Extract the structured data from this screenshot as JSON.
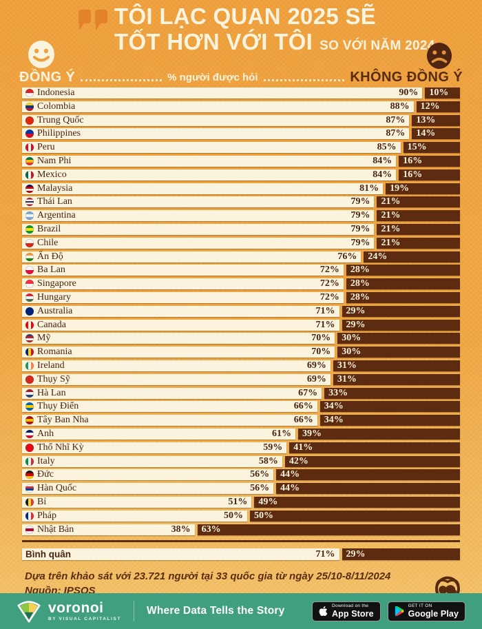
{
  "header": {
    "title_line1": "TÔI LẠC QUAN 2025 SẼ",
    "title_line2": "TỐT HƠN VỚI TÔI",
    "title_suffix": "SO VỚI NĂM 2024",
    "agree_label": "ĐỒNG Ý",
    "disagree_label": "KHÔNG ĐỒNG Ý",
    "axis_label": "% người được hỏi"
  },
  "chart_data": {
    "type": "bar",
    "orientation": "horizontal",
    "stacked": true,
    "unit": "%",
    "series": [
      {
        "name": "Đồng ý"
      },
      {
        "name": "Không đồng ý"
      }
    ],
    "countries": [
      {
        "name": "Indonesia",
        "agree": 90,
        "disagree": 10,
        "flag": {
          "stripes": [
            "#dc2127",
            "#f5f5f5"
          ]
        }
      },
      {
        "name": "Colombia",
        "agree": 88,
        "disagree": 12,
        "flag": {
          "stripes": [
            "#fcd116",
            "#003893",
            "#ce1126"
          ]
        }
      },
      {
        "name": "Trung Quốc",
        "agree": 87,
        "disagree": 13,
        "flag": {
          "stripes": [
            "#de2910"
          ]
        }
      },
      {
        "name": "Philippines",
        "agree": 87,
        "disagree": 14,
        "flag": {
          "stripes": [
            "#0038a8",
            "#ce1126"
          ]
        }
      },
      {
        "name": "Peru",
        "agree": 85,
        "disagree": 15,
        "flag": {
          "stripes": [
            "#d91023",
            "#f5f5f5",
            "#d91023"
          ],
          "vertical": true
        }
      },
      {
        "name": "Nam Phi",
        "agree": 84,
        "disagree": 16,
        "flag": {
          "stripes": [
            "#007749",
            "#ffb612",
            "#de3831"
          ]
        }
      },
      {
        "name": "Mexico",
        "agree": 84,
        "disagree": 16,
        "flag": {
          "stripes": [
            "#006847",
            "#f5f5f5",
            "#ce1126"
          ],
          "vertical": true
        }
      },
      {
        "name": "Malaysia",
        "agree": 81,
        "disagree": 19,
        "flag": {
          "stripes": [
            "#010066",
            "#cc0001",
            "#f5f5f5",
            "#cc0001"
          ]
        }
      },
      {
        "name": "Thái Lan",
        "agree": 79,
        "disagree": 21,
        "flag": {
          "stripes": [
            "#a51931",
            "#f4f5f8",
            "#2d2a4a",
            "#f4f5f8",
            "#a51931"
          ]
        }
      },
      {
        "name": "Argentina",
        "agree": 79,
        "disagree": 21,
        "flag": {
          "stripes": [
            "#74acdf",
            "#f5f5f5",
            "#74acdf"
          ]
        }
      },
      {
        "name": "Brazil",
        "agree": 79,
        "disagree": 21,
        "flag": {
          "stripes": [
            "#009c3b",
            "#ffdf00",
            "#009c3b"
          ]
        }
      },
      {
        "name": "Chile",
        "agree": 79,
        "disagree": 21,
        "flag": {
          "stripes": [
            "#f5f5f5",
            "#d52b1e"
          ]
        }
      },
      {
        "name": "Ấn Độ",
        "agree": 76,
        "disagree": 24,
        "flag": {
          "stripes": [
            "#ff9933",
            "#f5f5f5",
            "#138808"
          ]
        }
      },
      {
        "name": "Ba Lan",
        "agree": 72,
        "disagree": 28,
        "flag": {
          "stripes": [
            "#f5f5f5",
            "#dc143c"
          ]
        }
      },
      {
        "name": "Singapore",
        "agree": 72,
        "disagree": 28,
        "flag": {
          "stripes": [
            "#ef3340",
            "#f5f5f5"
          ]
        }
      },
      {
        "name": "Hungary",
        "agree": 72,
        "disagree": 28,
        "flag": {
          "stripes": [
            "#ce2939",
            "#f5f5f5",
            "#477050"
          ]
        }
      },
      {
        "name": "Australia",
        "agree": 71,
        "disagree": 29,
        "flag": {
          "stripes": [
            "#00247d"
          ]
        }
      },
      {
        "name": "Canada",
        "agree": 71,
        "disagree": 29,
        "flag": {
          "stripes": [
            "#ff0000",
            "#f5f5f5",
            "#ff0000"
          ],
          "vertical": true
        }
      },
      {
        "name": "Mỹ",
        "agree": 70,
        "disagree": 30,
        "flag": {
          "stripes": [
            "#3c3b6e",
            "#b22234",
            "#f5f5f5",
            "#b22234"
          ]
        }
      },
      {
        "name": "Romania",
        "agree": 70,
        "disagree": 30,
        "flag": {
          "stripes": [
            "#002b7f",
            "#fcd116",
            "#ce1126"
          ],
          "vertical": true
        }
      },
      {
        "name": "Ireland",
        "agree": 69,
        "disagree": 31,
        "flag": {
          "stripes": [
            "#169b62",
            "#f5f5f5",
            "#ff883e"
          ],
          "vertical": true
        }
      },
      {
        "name": "Thụy Sỹ",
        "agree": 69,
        "disagree": 31,
        "flag": {
          "stripes": [
            "#d52b1e"
          ]
        }
      },
      {
        "name": "Hà Lan",
        "agree": 67,
        "disagree": 33,
        "flag": {
          "stripes": [
            "#ae1c28",
            "#f5f5f5",
            "#21468b"
          ]
        }
      },
      {
        "name": "Thụy Điển",
        "agree": 66,
        "disagree": 34,
        "flag": {
          "stripes": [
            "#006aa7",
            "#fecc00",
            "#006aa7"
          ]
        }
      },
      {
        "name": "Tây Ban Nha",
        "agree": 66,
        "disagree": 34,
        "flag": {
          "stripes": [
            "#aa151b",
            "#f1bf00",
            "#aa151b"
          ]
        }
      },
      {
        "name": "Anh",
        "agree": 61,
        "disagree": 39,
        "flag": {
          "stripes": [
            "#012169",
            "#f5f5f5",
            "#c8102e"
          ]
        }
      },
      {
        "name": "Thổ Nhĩ Kỳ",
        "agree": 59,
        "disagree": 41,
        "flag": {
          "stripes": [
            "#e30a17"
          ]
        }
      },
      {
        "name": "Italy",
        "agree": 58,
        "disagree": 42,
        "flag": {
          "stripes": [
            "#009246",
            "#f5f5f5",
            "#ce2b37"
          ],
          "vertical": true
        }
      },
      {
        "name": "Đức",
        "agree": 56,
        "disagree": 44,
        "flag": {
          "stripes": [
            "#1a1a1a",
            "#dd0000",
            "#ffce00"
          ]
        }
      },
      {
        "name": "Hàn Quốc",
        "agree": 56,
        "disagree": 44,
        "flag": {
          "stripes": [
            "#f5f5f5",
            "#cd2e3a",
            "#0047a0",
            "#f5f5f5"
          ]
        }
      },
      {
        "name": "Bỉ",
        "agree": 51,
        "disagree": 49,
        "flag": {
          "stripes": [
            "#1a1a1a",
            "#fdda24",
            "#ef3340"
          ],
          "vertical": true
        }
      },
      {
        "name": "Pháp",
        "agree": 50,
        "disagree": 50,
        "flag": {
          "stripes": [
            "#002395",
            "#f5f5f5",
            "#ed2939"
          ],
          "vertical": true
        }
      },
      {
        "name": "Nhật Bản",
        "agree": 38,
        "disagree": 63,
        "flag": {
          "stripes": [
            "#f5f5f5",
            "#bc002d",
            "#f5f5f5"
          ]
        }
      }
    ],
    "average": {
      "name": "Bình quân",
      "agree": 71,
      "disagree": 29
    }
  },
  "footnote": {
    "line1": "Dựa trên khảo sát với 23.721 người tại 33 quốc gia từ ngày 25/10-8/11/2024",
    "line2": "Nguồn: IPSOS"
  },
  "footer": {
    "brand": "voronoi",
    "brand_sub": "BY VISUAL CAPITALIST",
    "tagline": "Where Data Tells the Story",
    "appstore_top": "Download on the",
    "appstore_bottom": "App Store",
    "googleplay_top": "GET IT ON",
    "googleplay_bottom": "Google Play"
  },
  "colors": {
    "background_top": "#efa03c",
    "background_bottom": "#f3c168",
    "cream": "#faf3dd",
    "dark_brown": "#5a2c12",
    "bar_brown": "#5c2b10",
    "accent_orange": "#e2832b",
    "footer_teal": "#3f9f7e",
    "badge_black": "#111111"
  }
}
